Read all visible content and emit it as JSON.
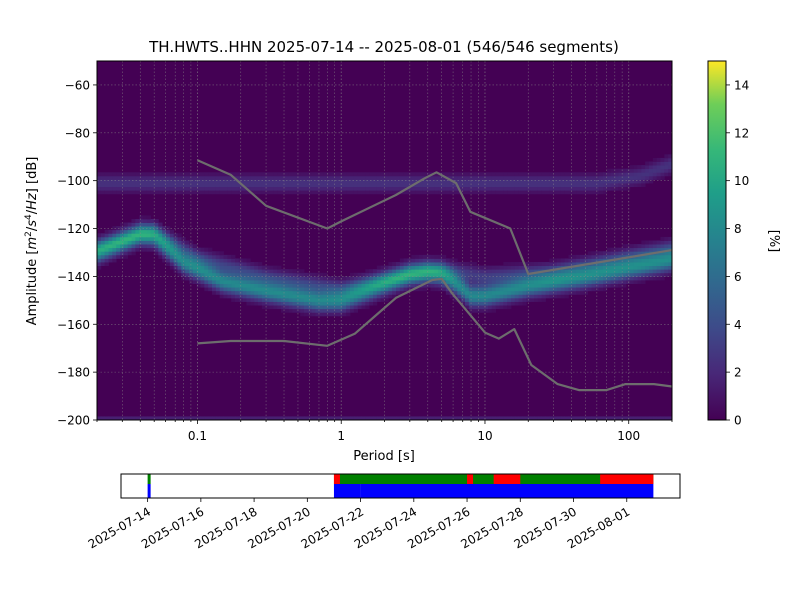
{
  "chart_data": [
    {
      "type": "heatmap",
      "title": "TH.HWTS..HHN   2025-07-14 -- 2025-08-01  (546/546 segments)",
      "xlabel": "Period [s]",
      "ylabel_parts": [
        "Amplitude [",
        "m",
        "2",
        "/",
        "s",
        "4",
        "/",
        "Hz",
        "] [dB]"
      ],
      "x_scale": "log",
      "xlim": [
        0.02,
        200
      ],
      "ylim": [
        -200,
        -50
      ],
      "x_ticks": [
        {
          "value": 0.1,
          "label": "0.1"
        },
        {
          "value": 1,
          "label": "1"
        },
        {
          "value": 10,
          "label": "10"
        },
        {
          "value": 100,
          "label": "100"
        }
      ],
      "y_ticks": [
        {
          "value": -60,
          "label": "−60"
        },
        {
          "value": -80,
          "label": "−80"
        },
        {
          "value": -100,
          "label": "−100"
        },
        {
          "value": -120,
          "label": "−120"
        },
        {
          "value": -140,
          "label": "−140"
        },
        {
          "value": -160,
          "label": "−160"
        },
        {
          "value": -180,
          "label": "−180"
        },
        {
          "value": -200,
          "label": "−200"
        }
      ],
      "grid": true,
      "colormap": "viridis",
      "background_color": "#440154",
      "colorbar": {
        "label": "[%]",
        "range": [
          0,
          15
        ],
        "ticks": [
          {
            "value": 0,
            "label": "0"
          },
          {
            "value": 2,
            "label": "2"
          },
          {
            "value": 4,
            "label": "4"
          },
          {
            "value": 6,
            "label": "6"
          },
          {
            "value": 8,
            "label": "8"
          },
          {
            "value": 10,
            "label": "10"
          },
          {
            "value": 12,
            "label": "12"
          },
          {
            "value": 14,
            "label": "14"
          }
        ]
      },
      "density_bands": [
        {
          "points": [
            [
              0.02,
              -101
            ],
            [
              0.1,
              -101
            ],
            [
              1,
              -101
            ],
            [
              10,
              -101
            ],
            [
              60,
              -101
            ],
            [
              120,
              -98
            ],
            [
              200,
              -93
            ]
          ],
          "intensity": 2.5,
          "halfwidth": 2.5
        },
        {
          "points": [
            [
              0.02,
              -130
            ],
            [
              0.04,
              -122
            ],
            [
              0.05,
              -123
            ],
            [
              0.08,
              -134
            ],
            [
              0.15,
              -142
            ],
            [
              0.3,
              -146
            ],
            [
              0.7,
              -150
            ],
            [
              1,
              -150
            ],
            [
              2,
              -143
            ],
            [
              3,
              -139
            ],
            [
              4,
              -138
            ],
            [
              5,
              -139
            ],
            [
              6,
              -142
            ],
            [
              8,
              -148
            ],
            [
              10,
              -148
            ],
            [
              20,
              -144
            ],
            [
              50,
              -140
            ],
            [
              200,
              -133
            ]
          ],
          "intensity": 8,
          "halfwidth": 3
        },
        {
          "points": [
            [
              0.02,
              -128
            ],
            [
              0.05,
              -121
            ],
            [
              0.1,
              -132
            ],
            [
              0.3,
              -140
            ],
            [
              1,
              -145
            ],
            [
              3,
              -139
            ],
            [
              5,
              -137
            ],
            [
              10,
              -140
            ],
            [
              30,
              -138
            ],
            [
              200,
              -128
            ]
          ],
          "intensity": 3,
          "halfwidth": 2.5
        },
        {
          "points": [
            [
              0.02,
              -200
            ],
            [
              200,
              -200
            ]
          ],
          "intensity": 9,
          "halfwidth": 0.4
        }
      ],
      "series": [
        {
          "name": "",
          "color": "#6d6d6d",
          "points": [
            [
              0.1,
              -91.5
            ],
            [
              0.17,
              -97.5
            ],
            [
              0.3,
              -110.5
            ],
            [
              0.8,
              -120
            ],
            [
              1,
              -117
            ],
            [
              2.4,
              -106
            ],
            [
              3.8,
              -99
            ],
            [
              4.6,
              -96.5
            ],
            [
              6.3,
              -101
            ],
            [
              7.9,
              -113
            ],
            [
              15,
              -120
            ],
            [
              20,
              -139
            ],
            [
              200,
              -129
            ]
          ]
        },
        {
          "name": "",
          "color": "#6d6d6d",
          "points": [
            [
              0.1,
              -168
            ],
            [
              0.17,
              -167
            ],
            [
              0.4,
              -167
            ],
            [
              0.8,
              -169
            ],
            [
              1.24,
              -164
            ],
            [
              2.4,
              -149
            ],
            [
              4.3,
              -141.5
            ],
            [
              5,
              -141
            ],
            [
              5.9,
              -147
            ],
            [
              10,
              -163.5
            ],
            [
              12.5,
              -166
            ],
            [
              16,
              -162
            ],
            [
              21,
              -177
            ],
            [
              32,
              -185
            ],
            [
              45,
              -187.5
            ],
            [
              70,
              -187.5
            ],
            [
              95,
              -185
            ],
            [
              150,
              -185
            ],
            [
              200,
              -186
            ]
          ]
        }
      ]
    },
    {
      "type": "timeline",
      "x_type": "date",
      "xlim": [
        "2025-07-13",
        "2025-08-03"
      ],
      "x_ticks": [
        "2025-07-14",
        "2025-07-16",
        "2025-07-18",
        "2025-07-20",
        "2025-07-22",
        "2025-07-24",
        "2025-07-26",
        "2025-07-28",
        "2025-07-30",
        "2025-08-01"
      ],
      "data_coverage": [
        {
          "start": "2025-07-14",
          "end": "2025-07-14",
          "status": "green"
        },
        {
          "start": "2025-07-21",
          "end": "2025-08-02",
          "status": "green"
        }
      ],
      "gaps": [
        {
          "start": "2025-07-21",
          "end": "2025-07-21",
          "status": "red"
        },
        {
          "start": "2025-07-26",
          "end": "2025-07-26",
          "status": "red"
        },
        {
          "start": "2025-07-27",
          "end": "2025-07-28",
          "status": "red"
        },
        {
          "start": "2025-07-31",
          "end": "2025-08-02",
          "status": "red"
        }
      ],
      "psd_segments": [
        {
          "start": "2025-07-14",
          "end": "2025-07-14"
        },
        {
          "start": "2025-07-21",
          "end": "2025-07-22"
        },
        {
          "start": "2025-07-22",
          "end": "2025-08-02"
        }
      ],
      "status_colors": {
        "green": "#008000",
        "red": "#ff0000",
        "blue": "#0000ff"
      }
    }
  ]
}
